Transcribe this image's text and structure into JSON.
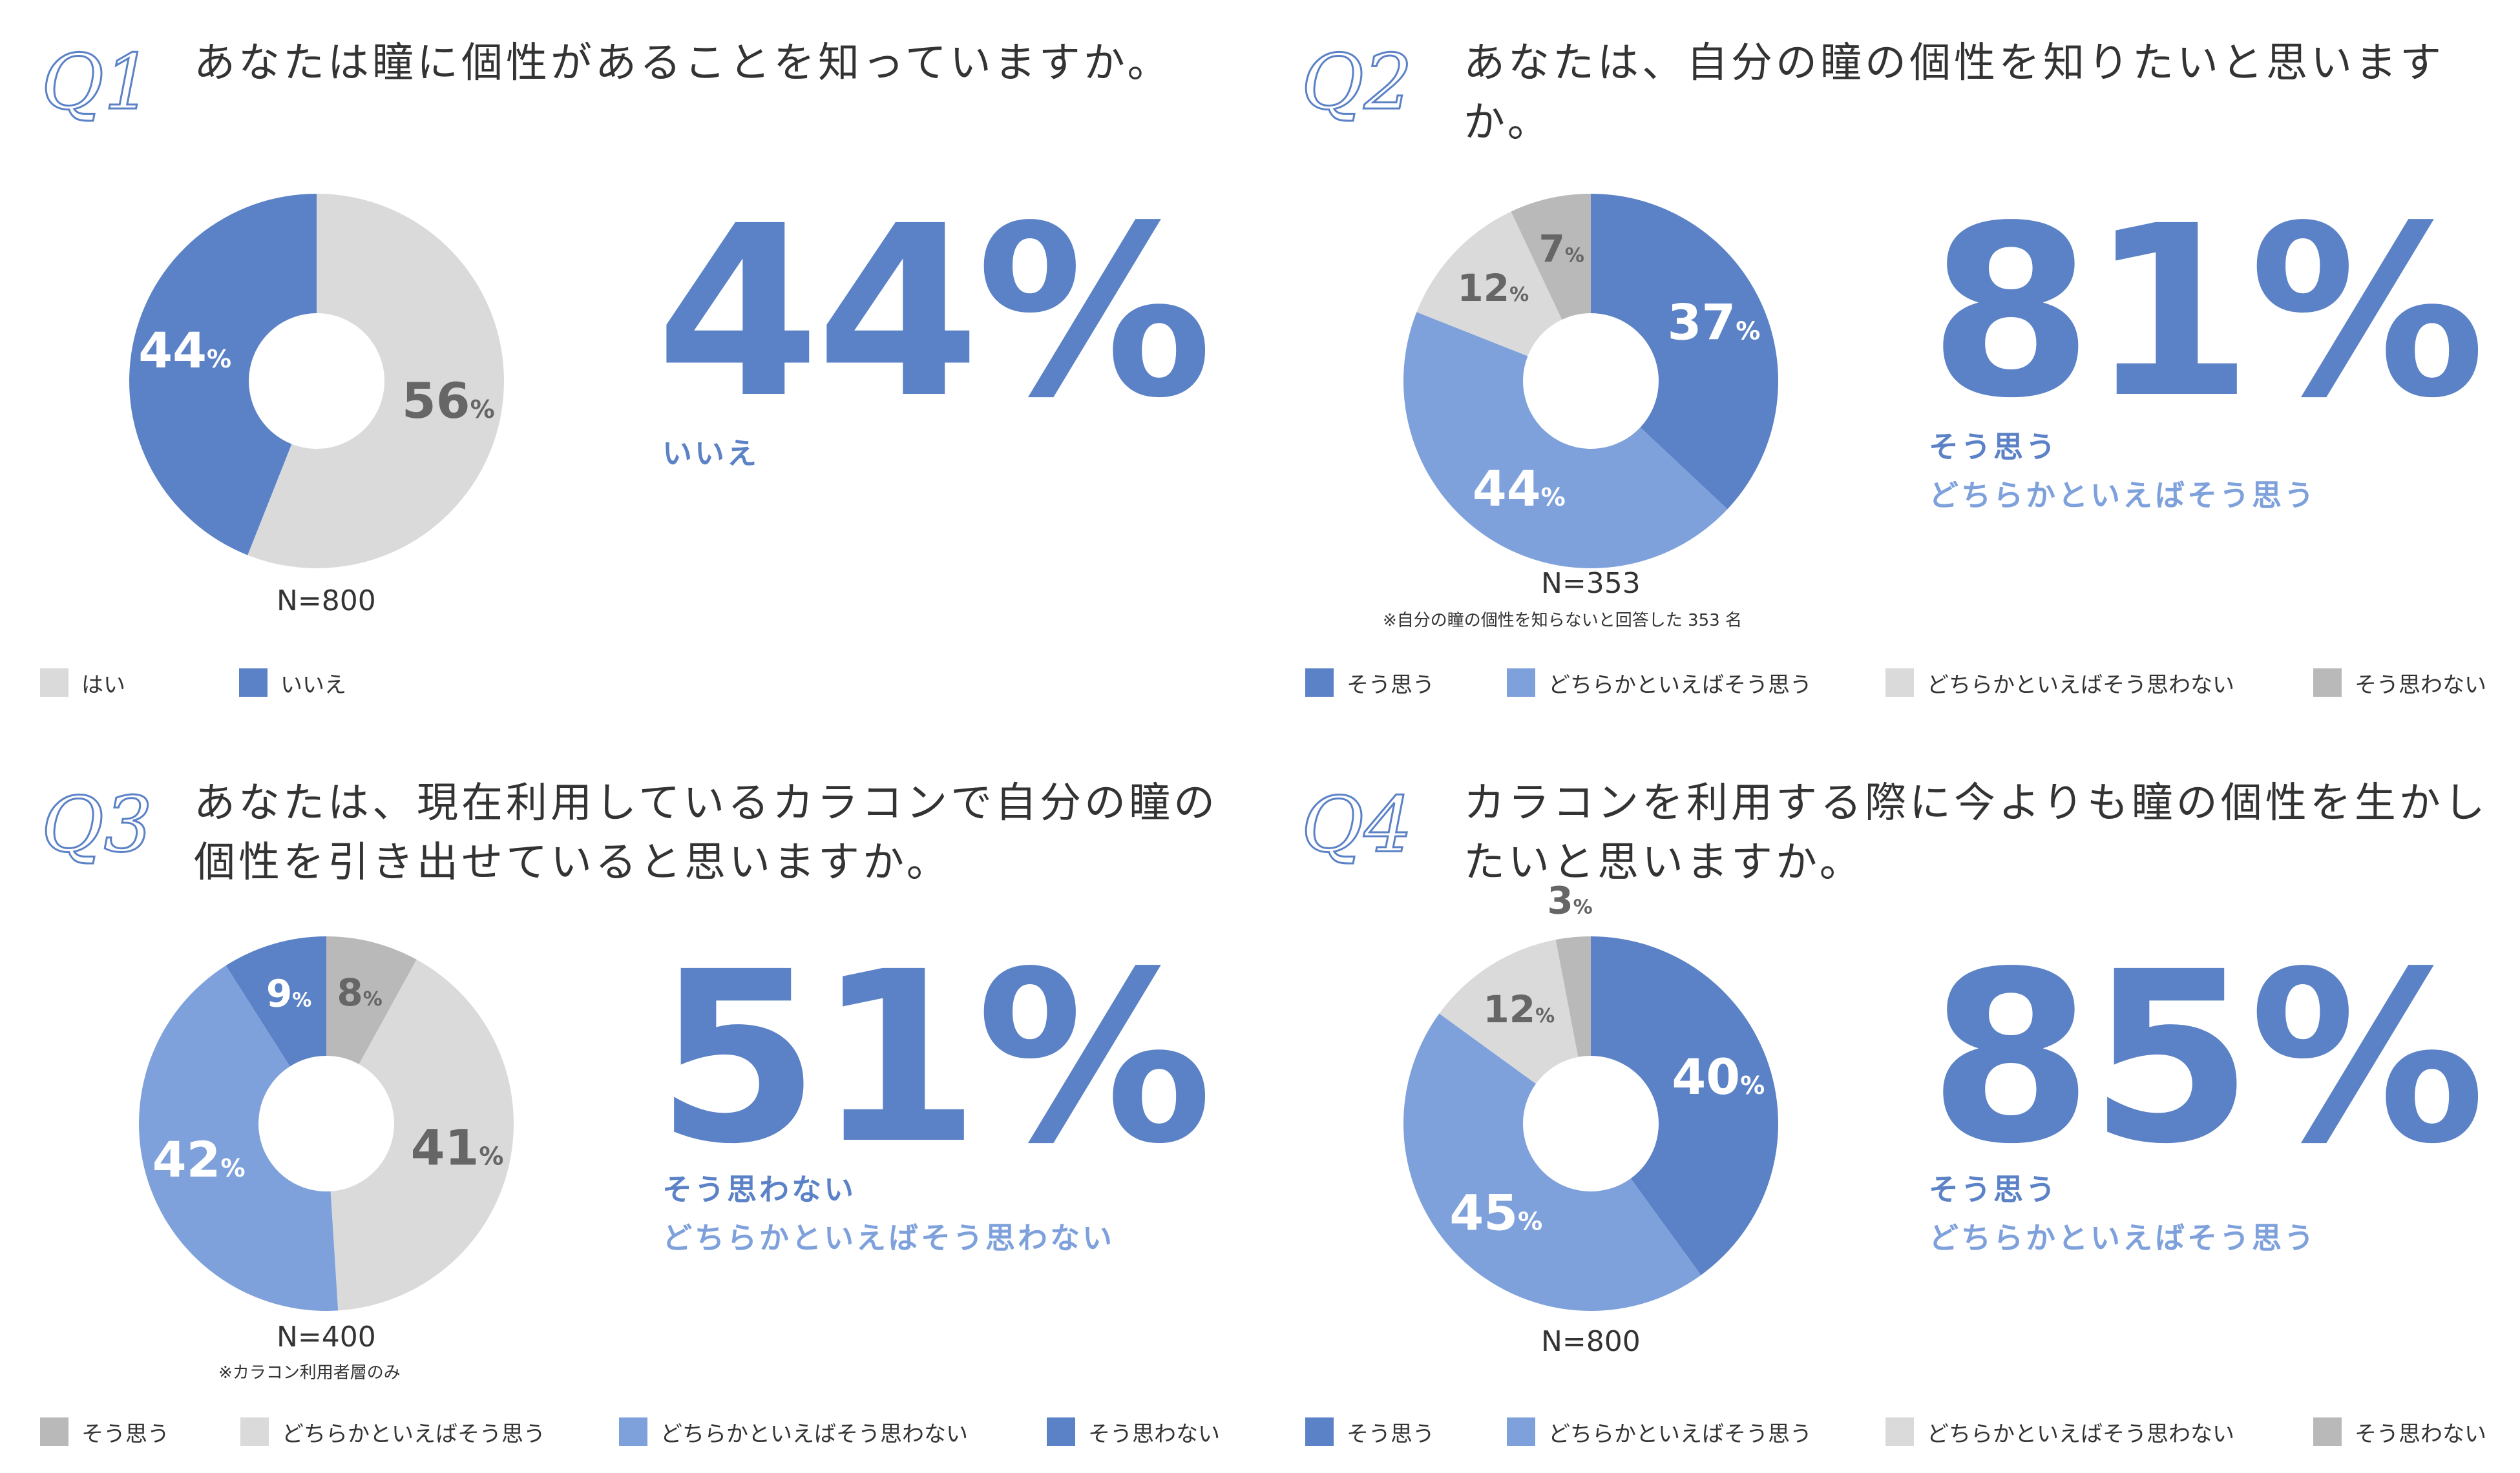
{
  "colors": {
    "dark_blue": "#5b82c6",
    "light_blue": "#7ea1dc",
    "light_gray": "#dadadb",
    "mid_gray": "#b9b9b9",
    "text": "#333333"
  },
  "panels": [
    {
      "q_label": "Q1",
      "question": "あなたは瞳に個性があることを知っていますか。",
      "big_value": "44%",
      "sub_lines": [
        "いいえ"
      ],
      "n_label": "N=800",
      "note": "",
      "legend": [
        "はい",
        "いいえ"
      ],
      "pie_labels": [
        "56%",
        "44%"
      ]
    },
    {
      "q_label": "Q2",
      "question": "あなたは、自分の瞳の個性を知りたいと思いますか。",
      "big_value": "81%",
      "sub_lines": [
        "そう思う",
        "どちらかといえばそう思う"
      ],
      "n_label": "N=353",
      "note": "※自分の瞳の個性を知らないと回答した 353 名",
      "legend": [
        "そう思う",
        "どちらかといえばそう思う",
        "どちらかといえばそう思わない",
        "そう思わない"
      ],
      "pie_labels": [
        "37%",
        "44%",
        "12%",
        "7%"
      ]
    },
    {
      "q_label": "Q3",
      "question": "あなたは、現在利用しているカラコンで自分の瞳の個性を引き出せていると思いますか。",
      "big_value": "51%",
      "sub_lines": [
        "そう思わない",
        "どちらかといえばそう思わない"
      ],
      "n_label": "N=400",
      "note": "※カラコン利用者層のみ",
      "legend": [
        "そう思う",
        "どちらかといえばそう思う",
        "どちらかといえばそう思わない",
        "そう思わない"
      ],
      "pie_labels": [
        "8%",
        "41%",
        "42%",
        "9%"
      ]
    },
    {
      "q_label": "Q4",
      "question": "カラコンを利用する際に今よりも瞳の個性を生かしたいと思いますか。",
      "big_value": "85%",
      "sub_lines": [
        "そう思う",
        "どちらかといえばそう思う"
      ],
      "n_label": "N=800",
      "note": "",
      "legend": [
        "そう思う",
        "どちらかといえばそう思う",
        "どちらかといえばそう思わない",
        "そう思わない"
      ],
      "pie_labels": [
        "40%",
        "45%",
        "12%",
        "3%"
      ]
    }
  ],
  "chart_data": [
    {
      "type": "pie",
      "title": "あなたは瞳に個性があることを知っていますか。",
      "categories": [
        "はい",
        "いいえ"
      ],
      "values": [
        56,
        44
      ],
      "colors": [
        "#dadadb",
        "#5b82c6"
      ],
      "n": 800,
      "legend_position": "bottom"
    },
    {
      "type": "pie",
      "title": "あなたは、自分の瞳の個性を知りたいと思いますか。",
      "categories": [
        "そう思う",
        "どちらかといえばそう思う",
        "どちらかといえばそう思わない",
        "そう思わない"
      ],
      "values": [
        37,
        44,
        12,
        7
      ],
      "colors": [
        "#5b82c6",
        "#7ea1dc",
        "#dadadb",
        "#b9b9b9"
      ],
      "n": 353,
      "legend_position": "bottom"
    },
    {
      "type": "pie",
      "title": "あなたは、現在利用しているカラコンで自分の瞳の個性を引き出せていると思いますか。",
      "categories": [
        "そう思う",
        "どちらかといえばそう思う",
        "どちらかといえばそう思わない",
        "そう思わない"
      ],
      "values": [
        8,
        41,
        42,
        9
      ],
      "colors": [
        "#b9b9b9",
        "#dadadb",
        "#7ea1dc",
        "#5b82c6"
      ],
      "n": 400,
      "legend_position": "bottom"
    },
    {
      "type": "pie",
      "title": "カラコンを利用する際に今よりも瞳の個性を生かしたいと思いますか。",
      "categories": [
        "そう思う",
        "どちらかといえばそう思う",
        "どちらかといえばそう思わない",
        "そう思わない"
      ],
      "values": [
        40,
        45,
        12,
        3
      ],
      "colors": [
        "#5b82c6",
        "#7ea1dc",
        "#dadadb",
        "#b9b9b9"
      ],
      "n": 800,
      "legend_position": "bottom"
    }
  ]
}
